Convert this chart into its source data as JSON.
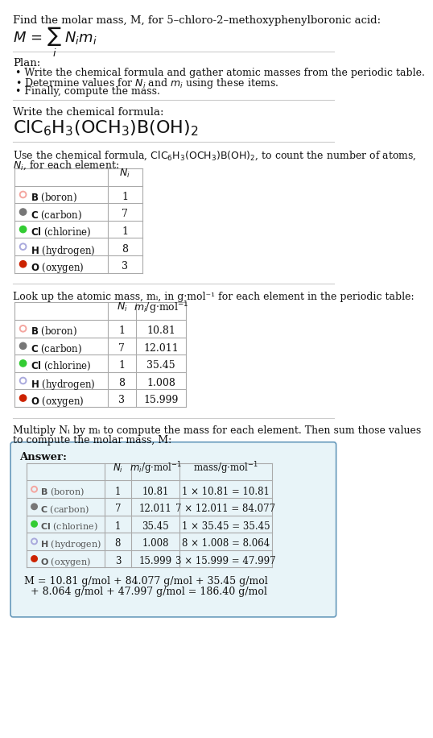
{
  "title_line": "Find the molar mass, M, for 5–chloro-2–methoxyphenylboronic acid:",
  "plan_header": "Plan:",
  "plan_bullets": [
    "Write the chemical formula and gather atomic masses from the periodic table.",
    "Determine values for Nᵢ and mᵢ using these items.",
    "Finally, compute the mass."
  ],
  "section2_header": "Write the chemical formula:",
  "section3_header_pre": "Use the chemical formula, ClC₆H₃(OCH₃)B(OH)₂, to count the number of atoms,",
  "section3_header_post": "Nᵢ, for each element:",
  "section4_header": "Look up the atomic mass, mᵢ, in g·mol⁻¹ for each element in the periodic table:",
  "section5_header_pre": "Multiply Nᵢ by mᵢ to compute the mass for each element. Then sum those values",
  "section5_header_post": "to compute the molar mass, M:",
  "answer_label": "Answer:",
  "final_eq": "M = 10.81 g/mol + 84.077 g/mol + 35.45 g/mol",
  "final_eq2": "  + 8.064 g/mol + 47.997 g/mol = 186.40 g/mol",
  "elements": [
    {
      "symbol": "B",
      "name": "boron",
      "dot_color": "#f4a6a0",
      "filled": false,
      "Ni": 1,
      "mi": "10.81",
      "mass_str": "1 × 10.81 = 10.81"
    },
    {
      "symbol": "C",
      "name": "carbon",
      "dot_color": "#777777",
      "filled": true,
      "Ni": 7,
      "mi": "12.011",
      "mass_str": "7 × 12.011 = 84.077"
    },
    {
      "symbol": "Cl",
      "name": "chlorine",
      "dot_color": "#33cc33",
      "filled": true,
      "Ni": 1,
      "mi": "35.45",
      "mass_str": "1 × 35.45 = 35.45"
    },
    {
      "symbol": "H",
      "name": "hydrogen",
      "dot_color": "#aaaadd",
      "filled": false,
      "Ni": 8,
      "mi": "1.008",
      "mass_str": "8 × 1.008 = 8.064"
    },
    {
      "symbol": "O",
      "name": "oxygen",
      "dot_color": "#cc2200",
      "filled": true,
      "Ni": 3,
      "mi": "15.999",
      "mass_str": "3 × 15.999 = 47.997"
    }
  ],
  "bg_color": "#ffffff",
  "table_line_color": "#aaaaaa",
  "answer_box_bg": "#e8f4f8",
  "answer_box_border": "#6699bb",
  "text_color": "#111111",
  "dim_text": "#555555"
}
